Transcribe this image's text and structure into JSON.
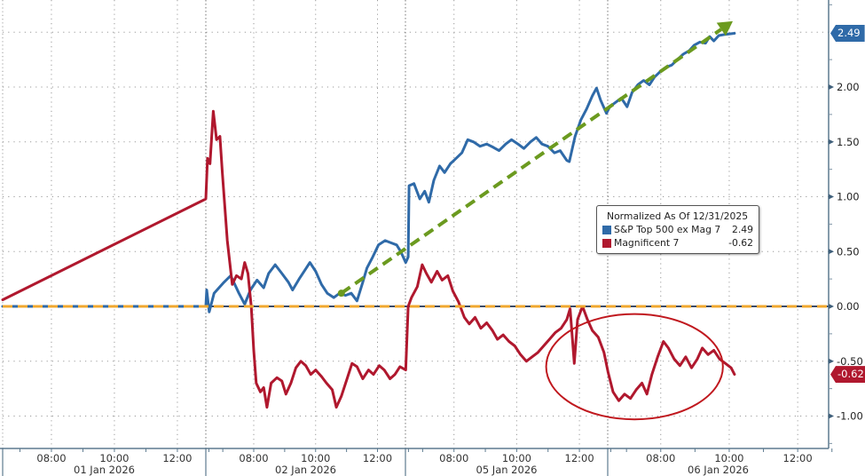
{
  "chart_data": {
    "type": "line",
    "title": "",
    "legend": {
      "title": "Normalized As Of 12/31/2025",
      "position": "inside-right",
      "entries": [
        {
          "name": "S&P Top 500 ex Mag 7",
          "value": "2.49",
          "color": "#2f6aa8"
        },
        {
          "name": "Magnificent 7",
          "value": "-0.62",
          "color": "#b0182e"
        }
      ]
    },
    "xlabel": "",
    "ylabel": "",
    "ylim": [
      -1.35,
      2.78
    ],
    "yaxis_side": "right",
    "yticks": [
      "2.00",
      "1.50",
      "1.00",
      "0.50",
      "0.00",
      "-0.50",
      "-1.00"
    ],
    "ytick_values": [
      2.0,
      1.5,
      1.0,
      0.5,
      0.0,
      -0.5,
      -1.0
    ],
    "grid": true,
    "x_days": [
      {
        "label": "01 Jan 2026",
        "ticks": [
          "08:00",
          "10:00",
          "12:00"
        ]
      },
      {
        "label": "02 Jan 2026",
        "ticks": [
          "08:00",
          "10:00",
          "12:00"
        ]
      },
      {
        "label": "05 Jan 2026",
        "ticks": [
          "08:00",
          "10:00",
          "12:00"
        ]
      },
      {
        "label": "06 Jan 2026",
        "ticks": [
          "08:00",
          "10:00",
          "12:00"
        ]
      }
    ],
    "x_note": "x is a 0-100 session-time index across the 4 trading days shown",
    "series": [
      {
        "name": "S&P Top 500 ex Mag 7",
        "color": "#2f6aa8",
        "last_value": 2.49,
        "points": [
          [
            0,
            0.0
          ],
          [
            24.6,
            0.0
          ],
          [
            24.7,
            0.15
          ],
          [
            25.0,
            -0.05
          ],
          [
            25.6,
            0.12
          ],
          [
            26.8,
            0.22
          ],
          [
            27.6,
            0.28
          ],
          [
            28.6,
            0.12
          ],
          [
            29.3,
            0.02
          ],
          [
            30.0,
            0.15
          ],
          [
            30.8,
            0.24
          ],
          [
            31.6,
            0.17
          ],
          [
            32.2,
            0.3
          ],
          [
            33.0,
            0.38
          ],
          [
            33.8,
            0.3
          ],
          [
            34.6,
            0.22
          ],
          [
            35.1,
            0.15
          ],
          [
            35.9,
            0.25
          ],
          [
            36.6,
            0.33
          ],
          [
            37.2,
            0.4
          ],
          [
            37.9,
            0.32
          ],
          [
            38.6,
            0.2
          ],
          [
            39.3,
            0.12
          ],
          [
            40.1,
            0.08
          ],
          [
            40.8,
            0.12
          ],
          [
            41.5,
            0.1
          ],
          [
            42.2,
            0.12
          ],
          [
            42.9,
            0.05
          ],
          [
            43.6,
            0.22
          ],
          [
            44.1,
            0.35
          ],
          [
            44.8,
            0.45
          ],
          [
            45.5,
            0.56
          ],
          [
            46.3,
            0.6
          ],
          [
            47.0,
            0.58
          ],
          [
            47.7,
            0.56
          ],
          [
            48.2,
            0.5
          ],
          [
            48.8,
            0.4
          ],
          [
            49.1,
            0.45
          ],
          [
            49.2,
            1.1
          ],
          [
            49.8,
            1.12
          ],
          [
            50.5,
            0.98
          ],
          [
            51.1,
            1.05
          ],
          [
            51.6,
            0.95
          ],
          [
            52.2,
            1.15
          ],
          [
            52.9,
            1.28
          ],
          [
            53.5,
            1.22
          ],
          [
            54.2,
            1.3
          ],
          [
            54.9,
            1.35
          ],
          [
            55.6,
            1.4
          ],
          [
            56.3,
            1.52
          ],
          [
            57.0,
            1.5
          ],
          [
            57.8,
            1.46
          ],
          [
            58.6,
            1.48
          ],
          [
            59.4,
            1.45
          ],
          [
            60.1,
            1.42
          ],
          [
            60.9,
            1.48
          ],
          [
            61.6,
            1.52
          ],
          [
            62.4,
            1.48
          ],
          [
            63.1,
            1.44
          ],
          [
            63.9,
            1.5
          ],
          [
            64.6,
            1.54
          ],
          [
            65.3,
            1.48
          ],
          [
            66.0,
            1.46
          ],
          [
            66.8,
            1.4
          ],
          [
            67.5,
            1.42
          ],
          [
            68.3,
            1.33
          ],
          [
            68.6,
            1.32
          ],
          [
            69.3,
            1.55
          ],
          [
            70.0,
            1.7
          ],
          [
            70.7,
            1.8
          ],
          [
            71.4,
            1.92
          ],
          [
            71.9,
            1.99
          ],
          [
            72.4,
            1.88
          ],
          [
            73.1,
            1.76
          ],
          [
            73.5,
            1.82
          ],
          [
            74.2,
            1.86
          ],
          [
            74.9,
            1.9
          ],
          [
            75.6,
            1.82
          ],
          [
            76.2,
            1.95
          ],
          [
            76.9,
            2.02
          ],
          [
            77.6,
            2.06
          ],
          [
            78.3,
            2.02
          ],
          [
            78.9,
            2.09
          ],
          [
            79.6,
            2.14
          ],
          [
            80.3,
            2.18
          ],
          [
            81.0,
            2.2
          ],
          [
            81.7,
            2.25
          ],
          [
            82.4,
            2.3
          ],
          [
            83.1,
            2.33
          ],
          [
            83.7,
            2.38
          ],
          [
            84.4,
            2.41
          ],
          [
            85.1,
            2.4
          ],
          [
            85.6,
            2.46
          ],
          [
            86.1,
            2.42
          ],
          [
            86.7,
            2.47
          ],
          [
            87.5,
            2.48
          ],
          [
            88.6,
            2.49
          ]
        ]
      },
      {
        "name": "Magnificent 7",
        "color": "#b0182e",
        "last_value": -0.62,
        "points": [
          [
            0,
            0.06
          ],
          [
            24.6,
            0.98
          ],
          [
            24.8,
            1.35
          ],
          [
            25.1,
            1.3
          ],
          [
            25.5,
            1.78
          ],
          [
            25.9,
            1.52
          ],
          [
            26.3,
            1.55
          ],
          [
            26.6,
            1.22
          ],
          [
            27.2,
            0.6
          ],
          [
            27.8,
            0.2
          ],
          [
            28.3,
            0.28
          ],
          [
            28.9,
            0.25
          ],
          [
            29.3,
            0.4
          ],
          [
            29.7,
            0.3
          ],
          [
            30.1,
            0.0
          ],
          [
            30.4,
            -0.4
          ],
          [
            30.7,
            -0.7
          ],
          [
            31.2,
            -0.78
          ],
          [
            31.6,
            -0.74
          ],
          [
            32.0,
            -0.92
          ],
          [
            32.5,
            -0.7
          ],
          [
            33.2,
            -0.65
          ],
          [
            33.8,
            -0.68
          ],
          [
            34.3,
            -0.8
          ],
          [
            34.9,
            -0.7
          ],
          [
            35.5,
            -0.56
          ],
          [
            36.1,
            -0.5
          ],
          [
            36.7,
            -0.54
          ],
          [
            37.3,
            -0.62
          ],
          [
            37.9,
            -0.58
          ],
          [
            38.6,
            -0.64
          ],
          [
            39.2,
            -0.7
          ],
          [
            39.9,
            -0.76
          ],
          [
            40.4,
            -0.92
          ],
          [
            41.0,
            -0.82
          ],
          [
            41.7,
            -0.66
          ],
          [
            42.3,
            -0.52
          ],
          [
            42.9,
            -0.55
          ],
          [
            43.6,
            -0.66
          ],
          [
            44.3,
            -0.58
          ],
          [
            44.9,
            -0.62
          ],
          [
            45.6,
            -0.54
          ],
          [
            46.2,
            -0.58
          ],
          [
            46.9,
            -0.66
          ],
          [
            47.5,
            -0.62
          ],
          [
            48.1,
            -0.55
          ],
          [
            48.8,
            -0.58
          ],
          [
            49.1,
            0.0
          ],
          [
            49.5,
            0.08
          ],
          [
            50.2,
            0.18
          ],
          [
            50.8,
            0.38
          ],
          [
            51.3,
            0.3
          ],
          [
            51.9,
            0.22
          ],
          [
            52.6,
            0.32
          ],
          [
            53.2,
            0.24
          ],
          [
            53.9,
            0.28
          ],
          [
            54.5,
            0.14
          ],
          [
            55.2,
            0.04
          ],
          [
            55.9,
            -0.1
          ],
          [
            56.5,
            -0.16
          ],
          [
            57.2,
            -0.1
          ],
          [
            57.9,
            -0.2
          ],
          [
            58.6,
            -0.15
          ],
          [
            59.3,
            -0.22
          ],
          [
            59.9,
            -0.3
          ],
          [
            60.6,
            -0.26
          ],
          [
            61.3,
            -0.32
          ],
          [
            62.0,
            -0.36
          ],
          [
            62.7,
            -0.44
          ],
          [
            63.4,
            -0.5
          ],
          [
            64.1,
            -0.46
          ],
          [
            64.8,
            -0.42
          ],
          [
            65.5,
            -0.36
          ],
          [
            66.2,
            -0.3
          ],
          [
            66.9,
            -0.24
          ],
          [
            67.6,
            -0.2
          ],
          [
            68.3,
            -0.12
          ],
          [
            68.7,
            -0.02
          ],
          [
            69.2,
            -0.52
          ],
          [
            69.6,
            -0.12
          ],
          [
            70.2,
            0.0
          ],
          [
            70.8,
            -0.12
          ],
          [
            71.4,
            -0.22
          ],
          [
            72.1,
            -0.28
          ],
          [
            72.8,
            -0.42
          ],
          [
            73.3,
            -0.6
          ],
          [
            73.9,
            -0.78
          ],
          [
            74.6,
            -0.86
          ],
          [
            75.3,
            -0.8
          ],
          [
            76.0,
            -0.84
          ],
          [
            76.7,
            -0.76
          ],
          [
            77.4,
            -0.7
          ],
          [
            78.0,
            -0.8
          ],
          [
            78.6,
            -0.62
          ],
          [
            79.3,
            -0.46
          ],
          [
            80.0,
            -0.32
          ],
          [
            80.6,
            -0.38
          ],
          [
            81.3,
            -0.48
          ],
          [
            82.0,
            -0.54
          ],
          [
            82.7,
            -0.46
          ],
          [
            83.4,
            -0.56
          ],
          [
            84.1,
            -0.48
          ],
          [
            84.7,
            -0.38
          ],
          [
            85.4,
            -0.44
          ],
          [
            86.1,
            -0.4
          ],
          [
            86.8,
            -0.48
          ],
          [
            87.5,
            -0.52
          ],
          [
            88.2,
            -0.56
          ],
          [
            88.6,
            -0.62
          ]
        ]
      }
    ],
    "annotations": [
      {
        "type": "horizontal-dashed-line",
        "y": 0.0,
        "color": "#f0a830"
      },
      {
        "type": "dashed-arrow",
        "color": "#6b9a1f",
        "from": [
          41.0,
          0.12
        ],
        "to": [
          88.4,
          2.6
        ],
        "label": ""
      },
      {
        "type": "ellipse",
        "color": "#c0181e",
        "center": [
          76.5,
          -0.55
        ],
        "rx": 10.7,
        "ry": 0.48
      }
    ],
    "value_badges": [
      {
        "value": "2.49",
        "color": "#2f6aa8",
        "y": 2.49
      },
      {
        "value": "-0.62",
        "color": "#b0182e",
        "y": -0.62
      }
    ]
  }
}
